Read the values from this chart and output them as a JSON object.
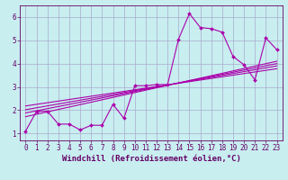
{
  "xlabel": "Windchill (Refroidissement éolien,°C)",
  "ylabel": "",
  "bg_color": "#c8eef0",
  "grid_color": "#aaaacc",
  "line_color": "#aa00aa",
  "marker_color": "#aa00aa",
  "xlim": [
    -0.5,
    23.5
  ],
  "ylim": [
    0.7,
    6.5
  ],
  "xticks": [
    0,
    1,
    2,
    3,
    4,
    5,
    6,
    7,
    8,
    9,
    10,
    11,
    12,
    13,
    14,
    15,
    16,
    17,
    18,
    19,
    20,
    21,
    22,
    23
  ],
  "yticks": [
    1,
    2,
    3,
    4,
    5,
    6
  ],
  "scatter_x": [
    0,
    1,
    2,
    3,
    4,
    5,
    6,
    7,
    8,
    9,
    10,
    11,
    12,
    13,
    14,
    15,
    16,
    17,
    18,
    19,
    20,
    21,
    22,
    23
  ],
  "scatter_y": [
    1.1,
    1.95,
    1.95,
    1.4,
    1.4,
    1.15,
    1.35,
    1.35,
    2.25,
    1.65,
    3.05,
    3.05,
    3.1,
    3.1,
    5.05,
    6.15,
    5.55,
    5.5,
    5.35,
    4.3,
    3.95,
    3.3,
    5.1,
    4.6
  ],
  "reg_lines": [
    {
      "x0": 0,
      "y0": 1.72,
      "x1": 23,
      "y1": 4.1
    },
    {
      "x0": 0,
      "y0": 1.88,
      "x1": 23,
      "y1": 4.0
    },
    {
      "x0": 0,
      "y0": 2.02,
      "x1": 23,
      "y1": 3.9
    },
    {
      "x0": 0,
      "y0": 2.18,
      "x1": 23,
      "y1": 3.78
    }
  ],
  "axis_color": "#660066",
  "tick_color": "#660066",
  "xlabel_color": "#660066",
  "tick_fontsize": 5.5,
  "xlabel_fontsize": 6.5
}
